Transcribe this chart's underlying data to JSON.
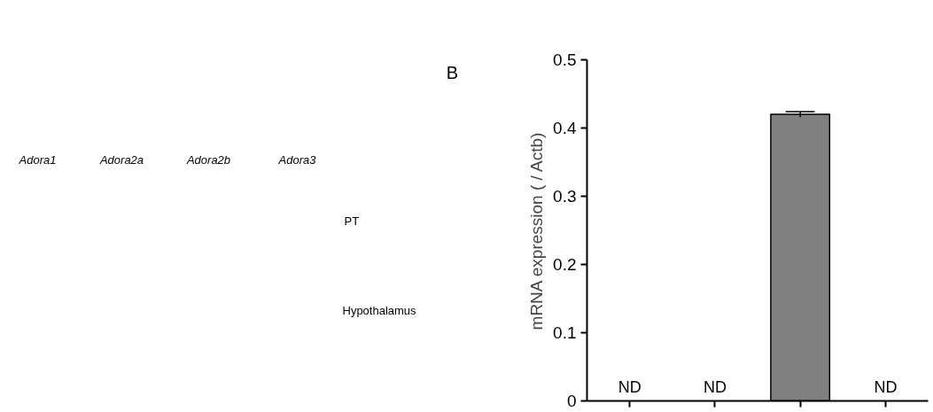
{
  "chart_data": {
    "type": "bar",
    "ylabel": "mRNA expression ( / Actb)",
    "categories": [
      null,
      null,
      null,
      null
    ],
    "series": [
      {
        "color": "#808080",
        "values": [
          null,
          null,
          0.42,
          null
        ],
        "errors": [
          null,
          null,
          0.004,
          null
        ]
      }
    ],
    "value_labels": [
      "ND",
      "ND",
      null,
      "ND"
    ],
    "ylim": [
      0,
      0.5
    ],
    "yticks": [
      0,
      0.1,
      0.2,
      0.3,
      0.4,
      0.5
    ],
    "grid": false,
    "annotations": [
      "B",
      "Adora1",
      "Adora2a",
      "Adora2b",
      "Adora3",
      "PT",
      "Hypothalamus"
    ]
  }
}
